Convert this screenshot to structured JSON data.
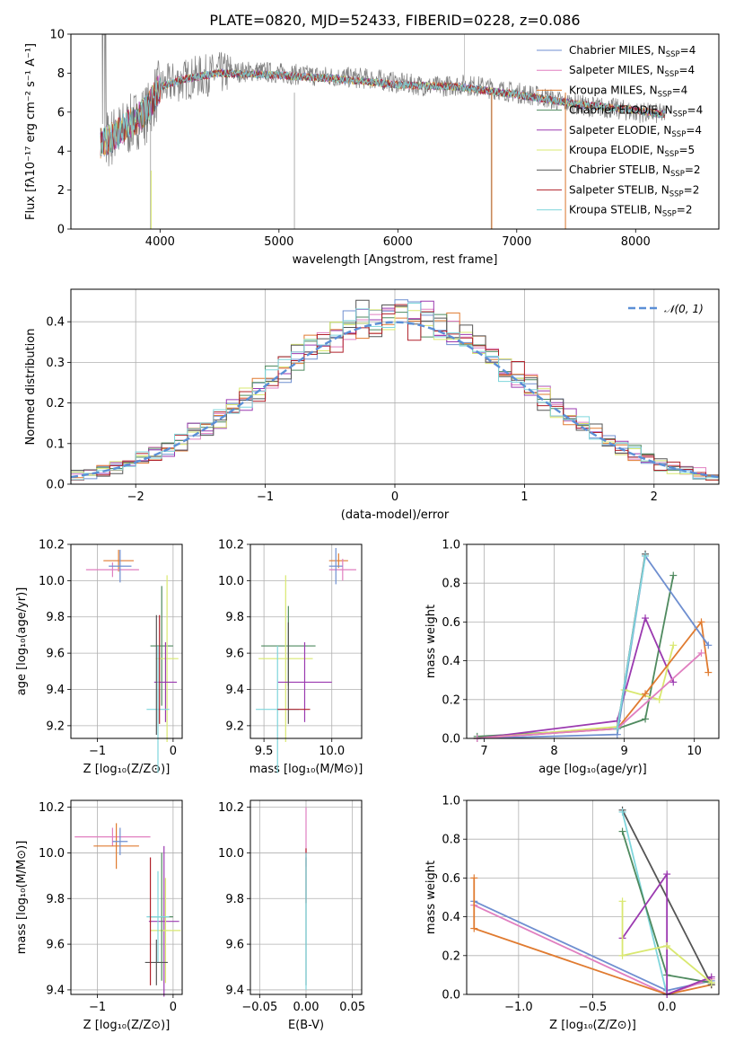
{
  "title": "PLATE=0820, MJD=52433, FIBERID=0228, z=0.086",
  "spectrum": {
    "xlabel": "wavelength [Angstrom, rest frame]",
    "ylabel": "Flux [fλ10⁻¹⁷ erg cm⁻² s⁻¹ A⁻¹]",
    "xticks": [
      "4000",
      "5000",
      "6000",
      "7000",
      "8000"
    ],
    "yticks": [
      "0",
      "2",
      "4",
      "6",
      "8",
      "10"
    ]
  },
  "legend": [
    {
      "label": "Chabrier MILES, N",
      "sub": "SSP",
      "tail": "=4",
      "color": "#6f8fd0"
    },
    {
      "label": "Salpeter MILES, N",
      "sub": "SSP",
      "tail": "=4",
      "color": "#e07fc0"
    },
    {
      "label": "Kroupa MILES, N",
      "sub": "SSP",
      "tail": "=4",
      "color": "#e07b30"
    },
    {
      "label": "Chabrier ELODIE, N",
      "sub": "SSP",
      "tail": "=4",
      "color": "#4f8a5f"
    },
    {
      "label": "Salpeter ELODIE, N",
      "sub": "SSP",
      "tail": "=4",
      "color": "#9b3ab0"
    },
    {
      "label": "Kroupa ELODIE, N",
      "sub": "SSP",
      "tail": "=5",
      "color": "#d9e870"
    },
    {
      "label": "Chabrier STELIB, N",
      "sub": "SSP",
      "tail": "=2",
      "color": "#555555"
    },
    {
      "label": "Salpeter STELIB, N",
      "sub": "SSP",
      "tail": "=2",
      "color": "#b0202a"
    },
    {
      "label": "Kroupa STELIB, N",
      "sub": "SSP",
      "tail": "=2",
      "color": "#7fd6dc"
    }
  ],
  "chart_data": [
    {
      "type": "line",
      "name": "spectrum",
      "xlim": [
        3250,
        8700
      ],
      "ylim": [
        0,
        10
      ],
      "data_profile_x": [
        3500,
        3560,
        3700,
        3800,
        3900,
        3950,
        4000,
        4100,
        4300,
        4500,
        4800,
        5000,
        5200,
        5500,
        5800,
        6000,
        6300,
        6550,
        6700,
        7000,
        7200,
        7400,
        7600,
        7800,
        8000,
        8200
      ],
      "data_profile_y": [
        4.3,
        4.6,
        5.1,
        5.6,
        6.0,
        6.8,
        7.2,
        7.5,
        7.8,
        8.0,
        8.1,
        8.0,
        7.9,
        7.8,
        7.7,
        7.5,
        7.3,
        7.4,
        7.3,
        7.0,
        6.8,
        6.5,
        6.3,
        6.2,
        6.0,
        5.9
      ],
      "model_profile_x": [
        3500,
        3600,
        3700,
        3800,
        3900,
        4000,
        4200,
        4500,
        5000,
        5500,
        6000,
        6500,
        7000,
        7500,
        8000,
        8200
      ],
      "model_profile_y": [
        4.4,
        4.7,
        5.2,
        5.6,
        6.2,
        7.3,
        7.7,
        8.0,
        7.9,
        7.7,
        7.4,
        7.3,
        6.9,
        6.4,
        6.1,
        5.9
      ]
    },
    {
      "type": "line",
      "name": "residual-distribution",
      "xlabel": "(data-model)/error",
      "ylabel": "Normed distribution",
      "xlim": [
        -2.5,
        2.5
      ],
      "ylim": [
        0,
        0.48
      ],
      "xticks": [
        "−2",
        "−1",
        "0",
        "1",
        "2"
      ],
      "yticks": [
        "0.0",
        "0.1",
        "0.2",
        "0.3",
        "0.4"
      ],
      "reference_label": "𝒩(0, 1)",
      "reference": "gaussian mean 0 sigma 1"
    },
    {
      "type": "scatter",
      "name": "age-vs-Z",
      "xlabel": "Z [log₁₀(Z/Z⊙)]",
      "ylabel": "age  [log₁₀(age/yr)]",
      "xlim": [
        -1.35,
        0.12
      ],
      "ylim": [
        9.13,
        10.2
      ],
      "xticks": [
        "−1",
        "0"
      ],
      "yticks": [
        "9.2",
        "9.4",
        "9.6",
        "9.8",
        "10.0",
        "10.2"
      ],
      "points": [
        {
          "x": -0.72,
          "y": 10.11,
          "xerr": 0.2,
          "yerr": 0.06,
          "color": "#e07b30"
        },
        {
          "x": -0.8,
          "y": 10.06,
          "xerr": 0.35,
          "yerr": 0.04,
          "color": "#e07fc0"
        },
        {
          "x": -0.7,
          "y": 10.08,
          "xerr": 0.15,
          "yerr": 0.09,
          "color": "#6f8fd0"
        },
        {
          "x": -0.15,
          "y": 9.64,
          "xerr": 0.15,
          "yerr": 0.33,
          "color": "#4f8a5f"
        },
        {
          "x": -0.08,
          "y": 9.57,
          "xerr": 0.15,
          "yerr": 0.46,
          "color": "#d9e870"
        },
        {
          "x": -0.1,
          "y": 9.44,
          "xerr": 0.15,
          "yerr": 0.22,
          "color": "#9b3ab0"
        },
        {
          "x": -0.2,
          "y": 9.29,
          "xerr": 0.15,
          "yerr": 0.35,
          "color": "#7fd6dc"
        },
        {
          "x": -0.22,
          "y": 9.48,
          "xerr": 0.0,
          "yerr": 0.33,
          "color": "#555555"
        },
        {
          "x": -0.18,
          "y": 9.51,
          "xerr": 0.0,
          "yerr": 0.3,
          "color": "#b0202a"
        }
      ]
    },
    {
      "type": "scatter",
      "name": "age-vs-mass",
      "xlabel": "mass [log₁₀(M/M⊙)]",
      "xlim": [
        9.4,
        10.22
      ],
      "ylim": [
        9.13,
        10.2
      ],
      "xticks": [
        "9.5",
        "10.0"
      ],
      "yticks": [
        "9.2",
        "9.4",
        "9.6",
        "9.8",
        "10.0",
        "10.2"
      ],
      "points": [
        {
          "x": 10.05,
          "y": 10.11,
          "xerr": 0.07,
          "yerr": 0.04,
          "color": "#e07b30"
        },
        {
          "x": 10.08,
          "y": 10.06,
          "xerr": 0.1,
          "yerr": 0.06,
          "color": "#e07fc0"
        },
        {
          "x": 10.03,
          "y": 10.08,
          "xerr": 0.05,
          "yerr": 0.1,
          "color": "#6f8fd0"
        },
        {
          "x": 9.68,
          "y": 9.64,
          "xerr": 0.2,
          "yerr": 0.22,
          "color": "#4f8a5f"
        },
        {
          "x": 9.66,
          "y": 9.57,
          "xerr": 0.2,
          "yerr": 0.46,
          "color": "#d9e870"
        },
        {
          "x": 9.8,
          "y": 9.44,
          "xerr": 0.2,
          "yerr": 0.22,
          "color": "#9b3ab0"
        },
        {
          "x": 9.6,
          "y": 9.29,
          "xerr": 0.16,
          "yerr": 0.35,
          "color": "#7fd6dc"
        },
        {
          "x": 9.68,
          "y": 9.49,
          "xerr": 0.0,
          "yerr": 0.28,
          "color": "#555555"
        },
        {
          "x": 9.72,
          "y": 9.29,
          "xerr": 0.12,
          "yerr": 0.0,
          "color": "#b0202a"
        }
      ]
    },
    {
      "type": "line",
      "name": "mass-weight-vs-age",
      "xlabel": "age  [log₁₀(age/yr)]",
      "ylabel": "mass weight",
      "xlim": [
        6.75,
        10.35
      ],
      "ylim": [
        0,
        1.0
      ],
      "xticks": [
        "7",
        "8",
        "9",
        "10"
      ],
      "yticks": [
        "0.0",
        "0.2",
        "0.4",
        "0.6",
        "0.8",
        "1.0"
      ],
      "series": [
        {
          "color": "#4f8a5f",
          "x": [
            6.9,
            8.9,
            9.3,
            9.7
          ],
          "y": [
            0.01,
            0.05,
            0.1,
            0.84
          ]
        },
        {
          "color": "#9b3ab0",
          "x": [
            6.9,
            8.9,
            9.3,
            9.7
          ],
          "y": [
            0.0,
            0.09,
            0.62,
            0.29
          ]
        },
        {
          "color": "#d9e870",
          "x": [
            6.9,
            8.9,
            9.0,
            9.5,
            9.7
          ],
          "y": [
            0.0,
            0.06,
            0.25,
            0.2,
            0.48
          ]
        },
        {
          "color": "#e07b30",
          "x": [
            6.9,
            8.9,
            9.3,
            10.1,
            10.2
          ],
          "y": [
            0.0,
            0.05,
            0.23,
            0.6,
            0.34
          ]
        },
        {
          "color": "#6f8fd0",
          "x": [
            6.9,
            8.9,
            9.3,
            10.2
          ],
          "y": [
            0.0,
            0.02,
            0.94,
            0.48
          ]
        },
        {
          "color": "#e07fc0",
          "x": [
            6.9,
            8.9,
            10.1
          ],
          "y": [
            0.0,
            0.05,
            0.44
          ]
        },
        {
          "color": "#555555",
          "x": [
            8.9,
            9.3
          ],
          "y": [
            0.05,
            0.95
          ]
        },
        {
          "color": "#7fd6dc",
          "x": [
            8.9,
            9.3
          ],
          "y": [
            0.05,
            0.94
          ]
        }
      ]
    },
    {
      "type": "scatter",
      "name": "mass-vs-Z",
      "xlabel": "Z [log₁₀(Z/Z⊙)]",
      "ylabel": "mass [log₁₀(M/M⊙)]",
      "xlim": [
        -1.35,
        0.12
      ],
      "ylim": [
        9.38,
        10.23
      ],
      "xticks": [
        "−1",
        "0"
      ],
      "yticks": [
        "9.4",
        "9.6",
        "9.8",
        "10.0",
        "10.2"
      ],
      "points": [
        {
          "x": -0.8,
          "y": 10.07,
          "xerr": 0.5,
          "yerr": 0.04,
          "color": "#e07fc0"
        },
        {
          "x": -0.75,
          "y": 10.03,
          "xerr": 0.3,
          "yerr": 0.1,
          "color": "#e07b30"
        },
        {
          "x": -0.7,
          "y": 10.05,
          "xerr": 0.1,
          "yerr": 0.06,
          "color": "#6f8fd0"
        },
        {
          "x": -0.12,
          "y": 9.7,
          "xerr": 0.2,
          "yerr": 0.33,
          "color": "#9b3ab0"
        },
        {
          "x": -0.1,
          "y": 9.66,
          "xerr": 0.2,
          "yerr": 0.23,
          "color": "#d9e870"
        },
        {
          "x": -0.15,
          "y": 9.72,
          "xerr": 0.15,
          "yerr": 0.28,
          "color": "#4f8a5f"
        },
        {
          "x": -0.2,
          "y": 9.72,
          "xerr": 0.15,
          "yerr": 0.2,
          "color": "#7fd6dc"
        },
        {
          "x": -0.22,
          "y": 9.52,
          "xerr": 0.15,
          "yerr": 0.1,
          "color": "#555555"
        },
        {
          "x": -0.3,
          "y": 9.7,
          "xerr": 0.0,
          "yerr": 0.28,
          "color": "#b0202a"
        }
      ]
    },
    {
      "type": "scatter",
      "name": "mass-vs-ebv",
      "xlabel": "E(B-V)",
      "xlim": [
        -0.06,
        0.06
      ],
      "ylim": [
        9.38,
        10.23
      ],
      "xticks": [
        "−0.05",
        "0.00",
        "0.05"
      ],
      "yticks": [
        "9.4",
        "9.6",
        "9.8",
        "10.0",
        "10.2"
      ],
      "points": [
        {
          "x": 0.0,
          "y": 10.07,
          "xerr": 0.0,
          "yerr": 0.13,
          "color": "#e07fc0"
        },
        {
          "x": 0.0,
          "y": 9.9,
          "xerr": 0.0,
          "yerr": 0.12,
          "color": "#b0202a"
        },
        {
          "x": 0.0,
          "y": 9.7,
          "xerr": 0.0,
          "yerr": 0.28,
          "color": "#555555"
        },
        {
          "x": 0.0,
          "y": 9.7,
          "xerr": 0.0,
          "yerr": 0.3,
          "color": "#7fd6dc"
        }
      ]
    },
    {
      "type": "line",
      "name": "mass-weight-vs-Z",
      "xlabel": "Z [log₁₀(Z/Z⊙)]",
      "ylabel": "mass weight",
      "xlim": [
        -1.35,
        0.35
      ],
      "ylim": [
        0,
        1.0
      ],
      "xticks": [
        "−1.0",
        "−0.5",
        "0.0"
      ],
      "yticks": [
        "0.0",
        "0.2",
        "0.4",
        "0.6",
        "0.8",
        "1.0"
      ],
      "series": [
        {
          "color": "#6f8fd0",
          "x": [
            -1.3,
            0.0,
            0.3
          ],
          "y": [
            0.48,
            0.02,
            0.07
          ]
        },
        {
          "color": "#e07fc0",
          "x": [
            -1.3,
            0.0,
            0.3
          ],
          "y": [
            0.46,
            0.0,
            0.08
          ]
        },
        {
          "color": "#e07b30",
          "x": [
            -1.3,
            -1.3,
            0.0,
            0.3
          ],
          "y": [
            0.6,
            0.34,
            0.0,
            0.05
          ]
        },
        {
          "color": "#555555",
          "x": [
            -0.3,
            0.3
          ],
          "y": [
            0.95,
            0.05
          ]
        },
        {
          "color": "#7fd6dc",
          "x": [
            -0.3,
            0.0
          ],
          "y": [
            0.94,
            0.0
          ]
        },
        {
          "color": "#4f8a5f",
          "x": [
            -0.3,
            0.0,
            0.3
          ],
          "y": [
            0.84,
            0.1,
            0.06
          ]
        },
        {
          "color": "#9b3ab0",
          "x": [
            -0.3,
            0.0,
            0.0,
            0.3
          ],
          "y": [
            0.29,
            0.62,
            0.0,
            0.09
          ]
        },
        {
          "color": "#d9e870",
          "x": [
            -0.3,
            -0.3,
            0.0,
            0.3
          ],
          "y": [
            0.48,
            0.2,
            0.25,
            0.06
          ]
        }
      ]
    }
  ]
}
